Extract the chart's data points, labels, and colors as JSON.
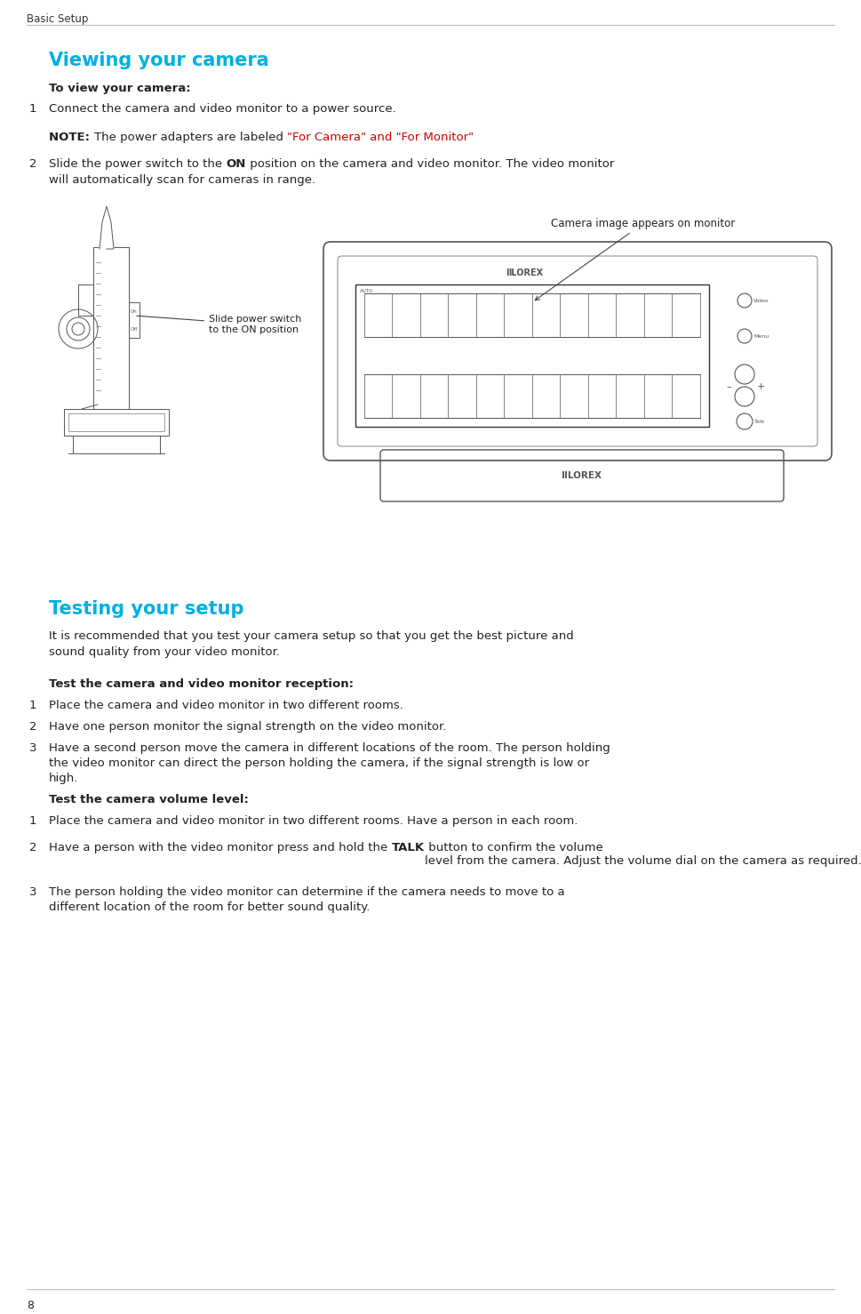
{
  "bg_color": "#ffffff",
  "header_text": "Basic Setup",
  "header_color": "#333333",
  "header_fontsize": 8.5,
  "header_line_color": "#bbbbbb",
  "footer_text": "8",
  "footer_fontsize": 9,
  "footer_line_color": "#bbbbbb",
  "section1_title": "Viewing your camera",
  "section1_title_color": "#00b0e0",
  "section1_title_fontsize": 15,
  "section1_subtitle": "To view your camera:",
  "section1_subtitle_fontsize": 9.5,
  "note_bold": "NOTE:",
  "note_normal": " The power adapters are labeled ",
  "note_red": "\"For Camera\" and \"For Monitor\"",
  "item1_text": "Connect the camera and video monitor to a power source.",
  "item2_pre": "Slide the power switch to the ",
  "item2_bold": "ON",
  "item2_post": " position on the camera and video monitor. The video monitor\nwill automatically scan for cameras in range.",
  "slide_annotation": "Slide power switch\nto the ON position",
  "camera_annotation": "Camera image appears on monitor",
  "section2_title": "Testing your setup",
  "section2_title_color": "#00b0e0",
  "section2_title_fontsize": 15,
  "section2_intro1": "It is recommended that you test your camera setup so that you get the best picture and",
  "section2_intro2": "sound quality from your video monitor.",
  "sub1_title": "Test the camera and video monitor reception:",
  "sub1_items": [
    "Place the camera and video monitor in two different rooms.",
    "Have one person monitor the signal strength on the video monitor.",
    "Have a second person move the camera in different locations of the room. The person holding\nthe video monitor can direct the person holding the camera, if the signal strength is low or\nhigh."
  ],
  "sub2_title": "Test the camera volume level:",
  "sub2_item1": "Place the camera and video monitor in two different rooms. Have a person in each room.",
  "sub2_item2_pre": "Have a person with the video monitor press and hold the ",
  "sub2_item2_bold": "TALK",
  "sub2_item2_post": " button to confirm the volume\nlevel from the camera. Adjust the volume dial on the camera as required.",
  "sub2_item3": "The person holding the video monitor can determine if the camera needs to move to a\ndifferent location of the room for better sound quality.",
  "text_color": "#222222",
  "text_fontsize": 9.5,
  "num_fontsize": 9.5,
  "lc": "#555555",
  "lw": 0.7
}
